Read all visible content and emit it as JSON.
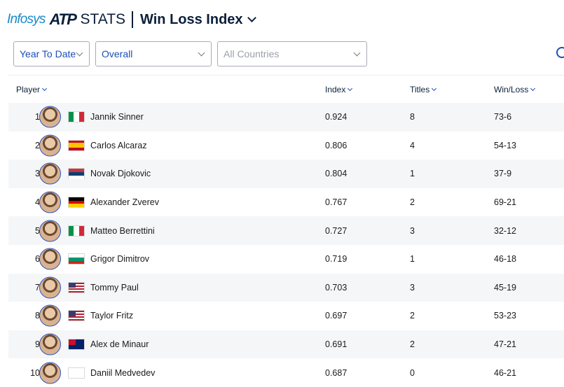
{
  "header": {
    "brand_infosys": "Infosys",
    "brand_atp": "ATP",
    "brand_stats": "STATS",
    "title": "Win Loss Index"
  },
  "filters": {
    "period": "Year To Date",
    "surface": "Overall",
    "country_placeholder": "All Countries"
  },
  "table": {
    "columns": {
      "player": "Player",
      "index": "Index",
      "titles": "Titles",
      "win_loss": "Win/Loss"
    },
    "rows": [
      {
        "rank": "1",
        "name": "Jannik Sinner",
        "index": "0.924",
        "titles": "8",
        "win_loss": "73-6",
        "country": "Italy"
      },
      {
        "rank": "2",
        "name": "Carlos Alcaraz",
        "index": "0.806",
        "titles": "4",
        "win_loss": "54-13",
        "country": "Spain"
      },
      {
        "rank": "3",
        "name": "Novak Djokovic",
        "index": "0.804",
        "titles": "1",
        "win_loss": "37-9",
        "country": "Serbia"
      },
      {
        "rank": "4",
        "name": "Alexander Zverev",
        "index": "0.767",
        "titles": "2",
        "win_loss": "69-21",
        "country": "Germany"
      },
      {
        "rank": "5",
        "name": "Matteo Berrettini",
        "index": "0.727",
        "titles": "3",
        "win_loss": "32-12",
        "country": "Italy"
      },
      {
        "rank": "6",
        "name": "Grigor Dimitrov",
        "index": "0.719",
        "titles": "1",
        "win_loss": "46-18",
        "country": "Bulgaria"
      },
      {
        "rank": "7",
        "name": "Tommy Paul",
        "index": "0.703",
        "titles": "3",
        "win_loss": "45-19",
        "country": "USA"
      },
      {
        "rank": "8",
        "name": "Taylor Fritz",
        "index": "0.697",
        "titles": "2",
        "win_loss": "53-23",
        "country": "USA"
      },
      {
        "rank": "9",
        "name": "Alex de Minaur",
        "index": "0.691",
        "titles": "2",
        "win_loss": "47-21",
        "country": "Australia"
      },
      {
        "rank": "10",
        "name": "Daniil Medvedev",
        "index": "0.687",
        "titles": "0",
        "win_loss": "46-21",
        "country": "Neutral"
      }
    ]
  },
  "colors": {
    "accent": "#1b4fb8",
    "navy": "#0b1f3a",
    "row_shade": "#f5f6f8"
  }
}
